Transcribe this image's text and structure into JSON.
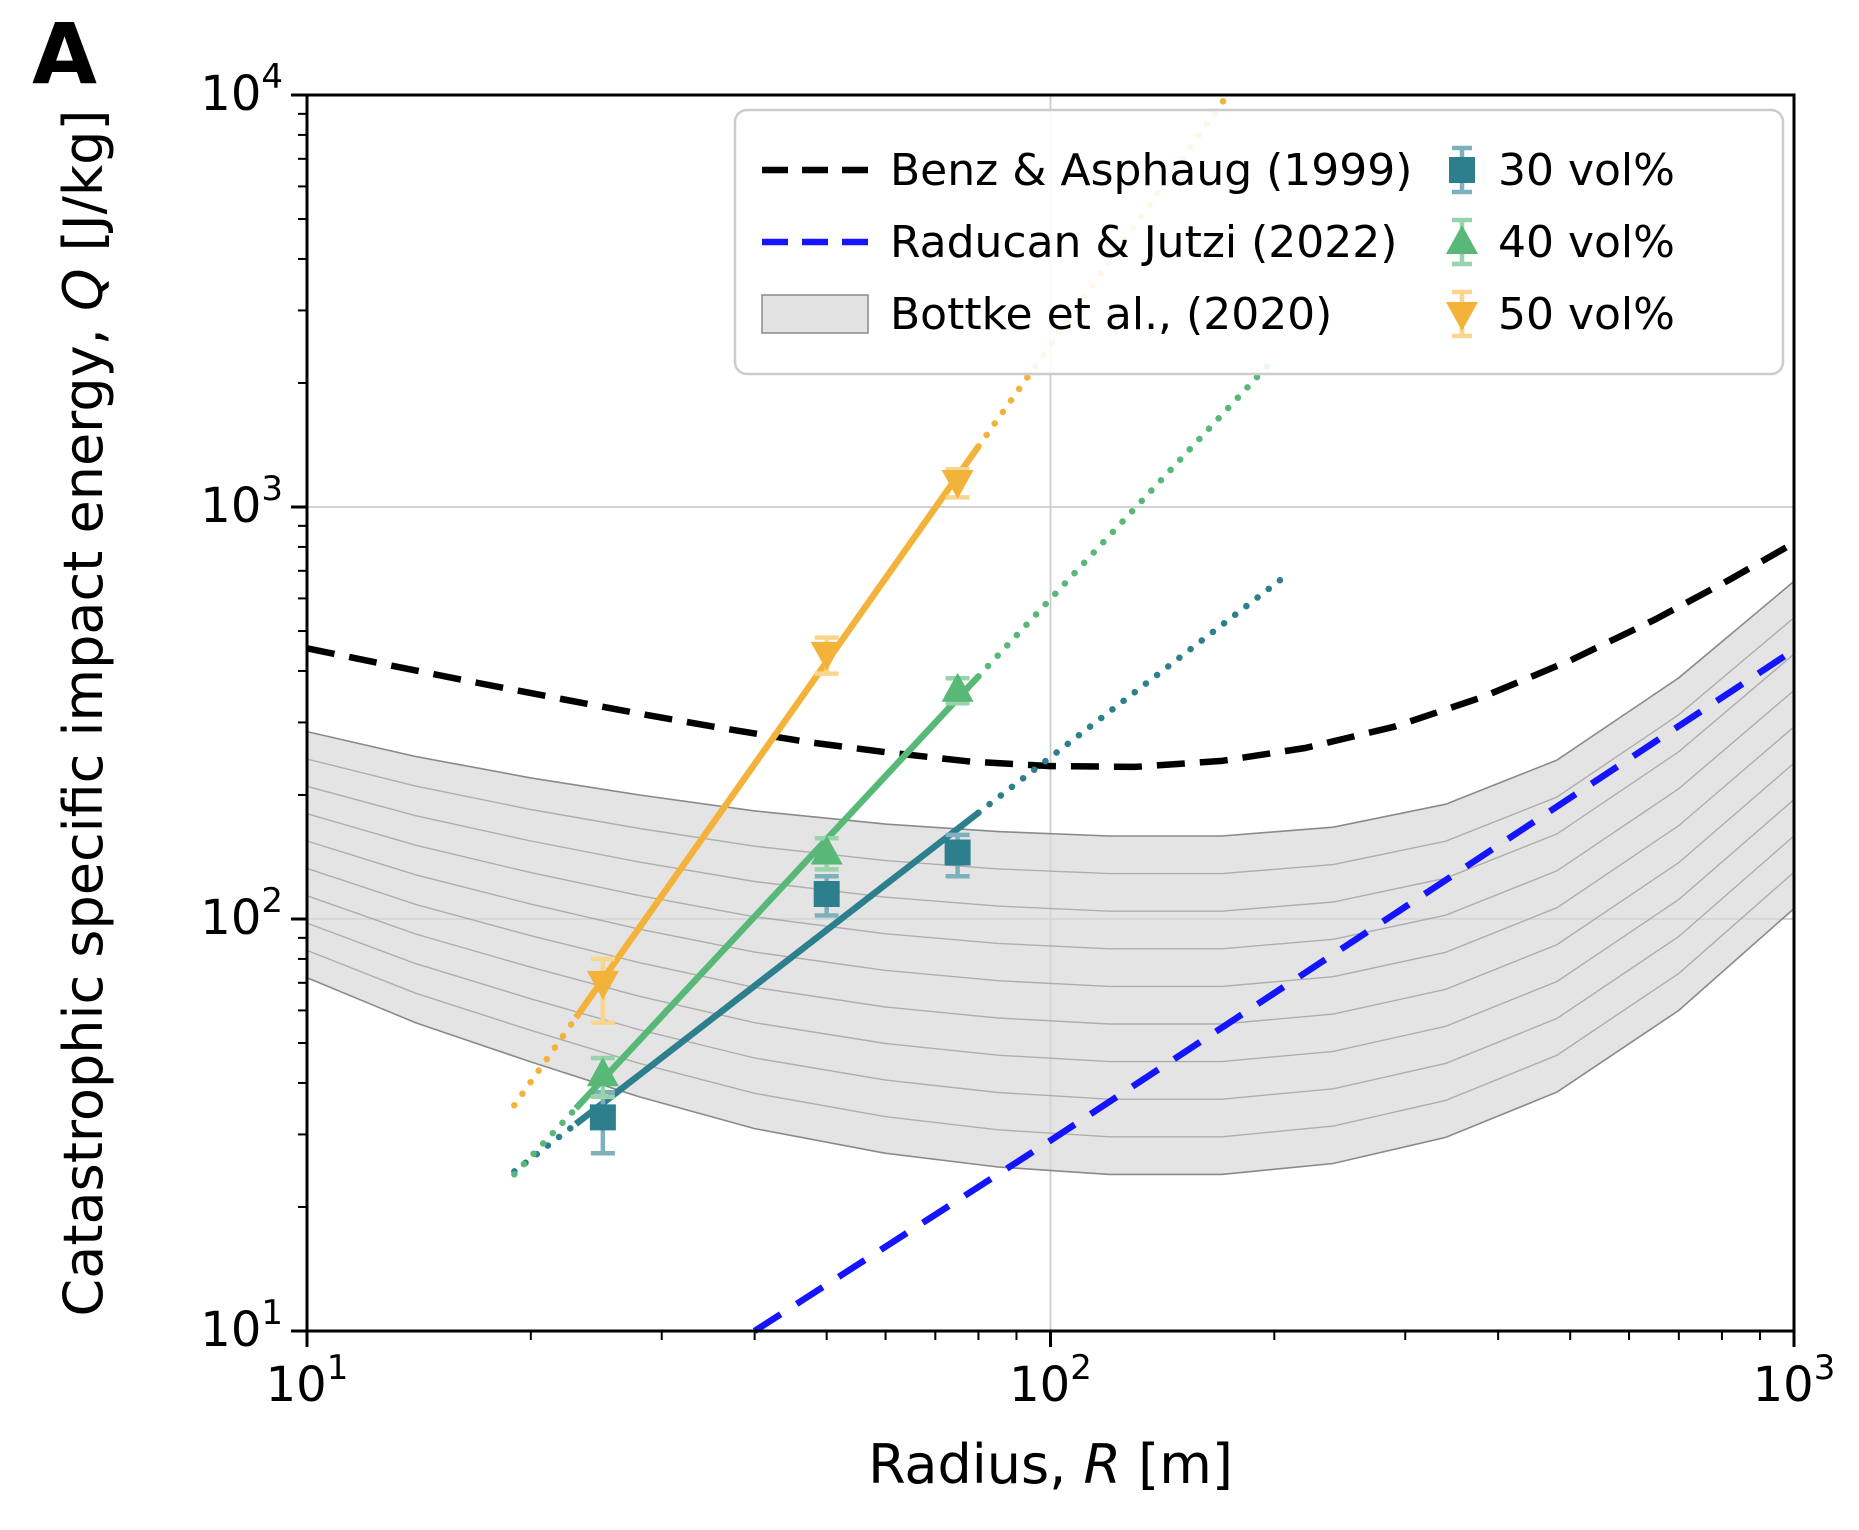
{
  "panel_label": "A",
  "chart_data": {
    "type": "line",
    "title": "",
    "xlabel": "Radius, R [m]",
    "xlabel_parts": [
      [
        "Radius, ",
        false
      ],
      [
        "R",
        true
      ],
      [
        " [m]",
        false
      ]
    ],
    "ylabel": "Catastrophic specific impact energy, Q [J/kg]",
    "ylabel_parts": [
      [
        "Catastrophic specific impact energy, ",
        false
      ],
      [
        "Q",
        true
      ],
      [
        " [J/kg]",
        false
      ]
    ],
    "xscale": "log",
    "yscale": "log",
    "xlim": [
      10,
      1000
    ],
    "ylim": [
      10,
      10000
    ],
    "x_ticks": [
      10,
      100,
      1000
    ],
    "y_ticks": [
      10,
      100,
      1000,
      10000
    ],
    "grid": true,
    "grid_color": "#cccccc",
    "legend_position": "upper center",
    "reference_curves": [
      {
        "name": "Benz & Asphaug (1999)",
        "color": "#000000",
        "style": "dashed",
        "points": [
          [
            10,
            454
          ],
          [
            13,
            412
          ],
          [
            17,
            374
          ],
          [
            22,
            342
          ],
          [
            28,
            315
          ],
          [
            36,
            291
          ],
          [
            47,
            269
          ],
          [
            60,
            254
          ],
          [
            78,
            241
          ],
          [
            100,
            235
          ],
          [
            130,
            234
          ],
          [
            170,
            242
          ],
          [
            220,
            260
          ],
          [
            290,
            293
          ],
          [
            380,
            345
          ],
          [
            500,
            424
          ],
          [
            650,
            533
          ],
          [
            820,
            667
          ],
          [
            1000,
            818
          ]
        ]
      },
      {
        "name": "Raducan & Jutzi (2022)",
        "color": "#1414ff",
        "style": "dashed",
        "points": [
          [
            40,
            10
          ],
          [
            100,
            29
          ],
          [
            300,
            107
          ],
          [
            1000,
            450
          ]
        ]
      }
    ],
    "band": {
      "name": "Bottke et al., (2020)",
      "fill": "#d9d9d9",
      "edge": "#8a8a8a",
      "inner_line_color": "#a0a0a0",
      "inner_lines": 8,
      "x": [
        10,
        14,
        20,
        28,
        40,
        60,
        85,
        120,
        170,
        240,
        340,
        480,
        700,
        1000
      ],
      "upper": [
        285,
        248,
        220,
        200,
        183,
        170,
        163,
        159,
        159,
        167,
        190,
        243,
        385,
        660
      ],
      "lower": [
        72,
        56,
        45,
        37,
        31,
        27,
        25,
        24,
        24,
        25.5,
        29.5,
        38,
        60,
        106
      ]
    },
    "series": [
      {
        "name": "30 vol%",
        "color": "#2e7f8e",
        "err_color": "#7cb1bd",
        "marker": "square",
        "points": [
          [
            25,
            33
          ],
          [
            50,
            115
          ],
          [
            75,
            145
          ]
        ],
        "yerr": [
          [
            6,
            5
          ],
          [
            13,
            12
          ],
          [
            18,
            15
          ]
        ],
        "fit_dotted_low": [
          [
            19,
            24.4
          ],
          [
            23,
            31.8
          ]
        ],
        "fit_solid": [
          [
            23,
            31.8
          ],
          [
            80,
            181
          ]
        ],
        "fit_dotted_high": [
          [
            80,
            181
          ],
          [
            205,
            671
          ]
        ]
      },
      {
        "name": "40 vol%",
        "color": "#58b878",
        "err_color": "#97d4ab",
        "marker": "triangle-up",
        "points": [
          [
            25,
            42
          ],
          [
            50,
            145
          ],
          [
            75,
            360
          ]
        ],
        "yerr": [
          [
            5,
            4
          ],
          [
            13,
            12
          ],
          [
            26,
            24
          ]
        ],
        "fit_dotted_low": [
          [
            19,
            24
          ],
          [
            23,
            34.7
          ]
        ],
        "fit_solid": [
          [
            23,
            34.7
          ],
          [
            80,
            388
          ]
        ],
        "fit_dotted_high": [
          [
            80,
            388
          ],
          [
            200,
            2293
          ]
        ]
      },
      {
        "name": "50 vol%",
        "color": "#f3b33a",
        "err_color": "#f8d68d",
        "marker": "triangle-down",
        "points": [
          [
            25,
            70
          ],
          [
            50,
            440
          ],
          [
            75,
            1150
          ]
        ],
        "yerr": [
          [
            14,
            10
          ],
          [
            46,
            42
          ],
          [
            95,
            85
          ]
        ],
        "fit_dotted_low": [
          [
            19,
            35.3
          ],
          [
            23,
            57.6
          ]
        ],
        "fit_solid": [
          [
            23,
            57.6
          ],
          [
            80,
            1402
          ]
        ],
        "fit_dotted_high": [
          [
            80,
            1402
          ],
          [
            173,
            10000
          ]
        ]
      }
    ]
  }
}
